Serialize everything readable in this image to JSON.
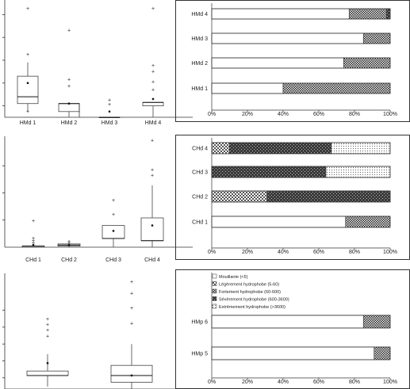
{
  "chart_data": [
    {
      "type": "box",
      "panel": "top-left",
      "categories": [
        "HMd 1",
        "HMd 2",
        "HMd 3",
        "HMd 4"
      ],
      "series": [
        {
          "category": "HMd 1",
          "whisker_low": 0.05,
          "q1": 0.12,
          "median": 0.18,
          "q3": 0.36,
          "whisker_high": 0.48,
          "mean": 0.3,
          "outliers": [
            0.95,
            0.55,
            0.05
          ]
        },
        {
          "category": "HMd 2",
          "whisker_low": 0.0,
          "q1": 0.05,
          "median": 0.12,
          "q3": 0.12,
          "whisker_high": 0.12,
          "mean": 0.12,
          "outliers": [
            0.76,
            0.33,
            0.27
          ]
        },
        {
          "category": "HMd 3",
          "whisker_low": 0.0,
          "q1": 0.0,
          "median": 0.0,
          "q3": 0.0,
          "whisker_high": 0.0,
          "mean": 0.05,
          "outliers": [
            0.15,
            0.11
          ]
        },
        {
          "category": "HMd 4",
          "whisker_low": 0.0,
          "q1": 0.1,
          "median": 0.13,
          "q3": 0.13,
          "whisker_high": 0.13,
          "mean": 0.16,
          "outliers": [
            0.95,
            0.45,
            0.4,
            0.31,
            0.24
          ]
        }
      ]
    },
    {
      "type": "bar",
      "stacked": "percent",
      "orientation": "horizontal",
      "panel": "top-right",
      "categories": [
        "HMd 4",
        "HMd 3",
        "HMd 2",
        "HMd 1"
      ],
      "x_ticks": [
        "0%",
        "20%",
        "40%",
        "60%",
        "80%",
        "100%"
      ],
      "xlim": [
        0,
        100
      ],
      "series": [
        {
          "name": "Mouillante (<5)",
          "values": [
            77,
            85,
            74,
            40
          ]
        },
        {
          "name": "Légèrement hydrophobe (5-60)",
          "values": [
            0,
            0,
            0,
            0
          ]
        },
        {
          "name": "Fortement hydrophobe (60-600)",
          "values": [
            21,
            15,
            26,
            60
          ]
        },
        {
          "name": "Sévèrement hydrophobe (600-3600)",
          "values": [
            2,
            0,
            0,
            0
          ]
        },
        {
          "name": "Extrêmement hydrophobe (>3600)",
          "values": [
            0,
            0,
            0,
            0
          ]
        }
      ]
    },
    {
      "type": "box",
      "panel": "middle-left",
      "categories": [
        "CHd 1",
        "CHd 2",
        "CHd 3",
        "CHd 4"
      ],
      "series": [
        {
          "category": "CHd 1",
          "whisker_low": 0.0,
          "q1": 0.0,
          "median": 0.01,
          "q3": 0.01,
          "whisker_high": 0.01,
          "mean": 0.02,
          "outliers": [
            0.24,
            0.08,
            0.06,
            0.04
          ]
        },
        {
          "category": "CHd 2",
          "whisker_low": 0.0,
          "q1": 0.01,
          "median": 0.02,
          "q3": 0.03,
          "whisker_high": 0.03,
          "mean": 0.02,
          "outliers": [
            0.05,
            0.04
          ]
        },
        {
          "category": "CHd 3",
          "whisker_low": 0.0,
          "q1": 0.08,
          "median": 0.08,
          "q3": 0.2,
          "whisker_high": 0.2,
          "mean": 0.15,
          "outliers": [
            0.43,
            0.3
          ]
        },
        {
          "category": "CHd 4",
          "whisker_low": 0.0,
          "q1": 0.06,
          "median": 0.06,
          "q3": 0.27,
          "whisker_high": 0.57,
          "mean": 0.2,
          "outliers": [
            0.98,
            0.71,
            0.66
          ]
        }
      ]
    },
    {
      "type": "bar",
      "stacked": "percent",
      "orientation": "horizontal",
      "panel": "middle-right",
      "categories": [
        "CHd 4",
        "CHd 3",
        "CHd 2",
        "CHd 1"
      ],
      "x_ticks": [
        "0%",
        "20%",
        "40%",
        "60%",
        "80%",
        "100%"
      ],
      "xlim": [
        0,
        100
      ],
      "series": [
        {
          "name": "Mouillante (<5)",
          "values": [
            0,
            0,
            0,
            75
          ]
        },
        {
          "name": "Légèrement hydrophobe (5-60)",
          "values": [
            10,
            0,
            31,
            0
          ]
        },
        {
          "name": "Fortement hydrophobe (60-600)",
          "values": [
            0,
            0,
            0,
            25
          ]
        },
        {
          "name": "Sévèrement hydrophobe (600-3600)",
          "values": [
            57,
            64,
            69,
            0
          ]
        },
        {
          "name": "Extrêmement hydrophobe (>3600)",
          "values": [
            33,
            36,
            0,
            0
          ]
        }
      ]
    },
    {
      "type": "box",
      "panel": "bottom-left",
      "categories": [],
      "series": [
        {
          "category": "",
          "whisker_low": 0.02,
          "q1": 0.12,
          "median": 0.12,
          "q3": 0.16,
          "whisker_high": 0.31,
          "mean": 0.23,
          "outliers": [
            0.62,
            0.57,
            0.52,
            0.47
          ]
        },
        {
          "category": "",
          "whisker_low": 0.0,
          "q1": 0.06,
          "median": 0.12,
          "q3": 0.21,
          "whisker_high": 0.4,
          "mean": 0.12,
          "outliers": [
            0.95,
            0.85,
            0.72,
            0.58
          ]
        }
      ]
    },
    {
      "type": "bar",
      "stacked": "percent",
      "orientation": "horizontal",
      "panel": "bottom-right",
      "categories": [
        "HMp 6",
        "HMp 5"
      ],
      "x_ticks": [
        "0%",
        "20%",
        "40%",
        "60%",
        "80%",
        "100%"
      ],
      "xlim": [
        0,
        100
      ],
      "legend": "inside top",
      "series": [
        {
          "name": "Mouillante (<5)",
          "values": [
            85,
            91
          ]
        },
        {
          "name": "Légèrement hydrophobe (5-60)",
          "values": [
            0,
            0
          ]
        },
        {
          "name": "Fortement hydrophobe (60-600)",
          "values": [
            15,
            9
          ]
        },
        {
          "name": "Sévèrement hydrophobe (600-3600)",
          "values": [
            0,
            0
          ]
        },
        {
          "name": "Extrêmement hydrophobe (>3600)",
          "values": [
            0,
            0
          ]
        }
      ]
    }
  ],
  "legend_items": [
    "Mouillante (<5)",
    "Légèrement hydrophobe (5-60)",
    "Fortement hydrophobe (60-600)",
    "Sévèrement hydrophobe (600-3600)",
    "Extrêmement hydrophobe (>3600)"
  ],
  "colors": {
    "Mouillante (<5)": "#ffffff",
    "Légèrement hydrophobe (5-60)": "pattern-checker",
    "Fortement hydrophobe (60-600)": "pattern-check",
    "Sévèrement hydrophobe (600-3600)": "pattern-dark",
    "Extrêmement hydrophobe (>3600)": "pattern-dots"
  }
}
